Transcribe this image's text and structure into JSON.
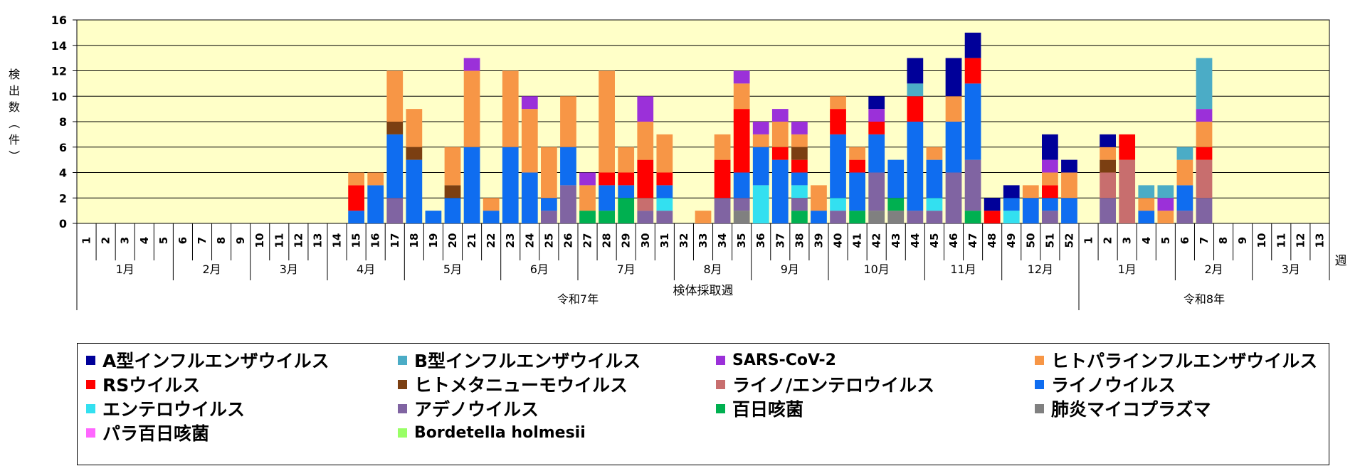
{
  "chart_data": {
    "type": "bar",
    "stacked": true,
    "ylabel": "検出数（件）",
    "xlabel": "検体採取週",
    "week_label": "週",
    "ylim": [
      0,
      16
    ],
    "yticks": [
      0,
      2,
      4,
      6,
      8,
      10,
      12,
      14,
      16
    ],
    "grid": true,
    "plot_background": "#ffffc8",
    "categories": [
      "1",
      "2",
      "3",
      "4",
      "5",
      "6",
      "7",
      "8",
      "9",
      "10",
      "11",
      "12",
      "13",
      "14",
      "15",
      "16",
      "17",
      "18",
      "19",
      "20",
      "21",
      "22",
      "23",
      "24",
      "25",
      "26",
      "27",
      "28",
      "29",
      "30",
      "31",
      "32",
      "33",
      "34",
      "35",
      "36",
      "37",
      "38",
      "39",
      "40",
      "41",
      "42",
      "43",
      "44",
      "45",
      "46",
      "47",
      "48",
      "49",
      "50",
      "51",
      "52",
      "1",
      "2",
      "3",
      "4",
      "5",
      "6",
      "7",
      "8",
      "9",
      "10",
      "11",
      "12",
      "13"
    ],
    "months": [
      {
        "label": "1月",
        "from": 0,
        "to": 5
      },
      {
        "label": "2月",
        "from": 5,
        "to": 9
      },
      {
        "label": "3月",
        "from": 9,
        "to": 13
      },
      {
        "label": "4月",
        "from": 13,
        "to": 17
      },
      {
        "label": "5月",
        "from": 17,
        "to": 22
      },
      {
        "label": "6月",
        "from": 22,
        "to": 26
      },
      {
        "label": "7月",
        "from": 26,
        "to": 31
      },
      {
        "label": "8月",
        "from": 31,
        "to": 35
      },
      {
        "label": "9月",
        "from": 35,
        "to": 39
      },
      {
        "label": "10月",
        "from": 39,
        "to": 44
      },
      {
        "label": "11月",
        "from": 44,
        "to": 48
      },
      {
        "label": "12月",
        "from": 48,
        "to": 52
      },
      {
        "label": "1月",
        "from": 52,
        "to": 57
      },
      {
        "label": "2月",
        "from": 57,
        "to": 61
      },
      {
        "label": "3月",
        "from": 61,
        "to": 65
      }
    ],
    "years": [
      {
        "label": "令和7年",
        "from": 0,
        "to": 52
      },
      {
        "label": "令和8年",
        "from": 52,
        "to": 65
      }
    ],
    "series": [
      {
        "name": "肺炎マイコプラズマ",
        "color": "#808080",
        "values": [
          0,
          0,
          0,
          0,
          0,
          0,
          0,
          0,
          0,
          0,
          0,
          0,
          0,
          0,
          0,
          0,
          0,
          0,
          0,
          0,
          0,
          0,
          0,
          0,
          0,
          0,
          0,
          0,
          0,
          0,
          0,
          0,
          0,
          0,
          1,
          0,
          0,
          0,
          0,
          0,
          0,
          1,
          1,
          0,
          0,
          0,
          0,
          0,
          0,
          0,
          0,
          0,
          0,
          0,
          0,
          0,
          0,
          0,
          0,
          0,
          0,
          0,
          0,
          0,
          0
        ]
      },
      {
        "name": "百日咳菌",
        "color": "#00b050",
        "values": [
          0,
          0,
          0,
          0,
          0,
          0,
          0,
          0,
          0,
          0,
          0,
          0,
          0,
          0,
          0,
          0,
          0,
          0,
          0,
          0,
          0,
          0,
          0,
          0,
          0,
          0,
          1,
          1,
          2,
          0,
          0,
          0,
          0,
          0,
          0,
          0,
          0,
          1,
          0,
          0,
          1,
          0,
          1,
          0,
          0,
          0,
          1,
          0,
          0,
          0,
          0,
          0,
          0,
          0,
          0,
          0,
          0,
          0,
          0,
          0,
          0,
          0,
          0,
          0,
          0
        ]
      },
      {
        "name": "アデノウイルス",
        "color": "#8064a2",
        "values": [
          0,
          0,
          0,
          0,
          0,
          0,
          0,
          0,
          0,
          0,
          0,
          0,
          0,
          0,
          0,
          0,
          2,
          0,
          0,
          0,
          0,
          0,
          0,
          0,
          1,
          3,
          0,
          0,
          0,
          1,
          1,
          0,
          0,
          2,
          1,
          0,
          0,
          1,
          0,
          1,
          0,
          3,
          0,
          1,
          1,
          4,
          4,
          0,
          0,
          0,
          1,
          0,
          0,
          2,
          0,
          0,
          0,
          1,
          2,
          0,
          0,
          0,
          0,
          0,
          0
        ]
      },
      {
        "name": "エンテロウイルス",
        "color": "#33e0f0",
        "values": [
          0,
          0,
          0,
          0,
          0,
          0,
          0,
          0,
          0,
          0,
          0,
          0,
          0,
          0,
          0,
          0,
          0,
          0,
          0,
          0,
          0,
          0,
          0,
          0,
          0,
          0,
          0,
          0,
          0,
          0,
          1,
          0,
          0,
          0,
          0,
          3,
          0,
          1,
          0,
          1,
          0,
          0,
          0,
          0,
          1,
          0,
          0,
          0,
          1,
          0,
          0,
          0,
          0,
          0,
          0,
          0,
          0,
          0,
          0,
          0,
          0,
          0,
          0,
          0,
          0
        ]
      },
      {
        "name": "ライノ/エンテロウイルス",
        "color": "#c86e6e",
        "values": [
          0,
          0,
          0,
          0,
          0,
          0,
          0,
          0,
          0,
          0,
          0,
          0,
          0,
          0,
          0,
          0,
          0,
          0,
          0,
          0,
          0,
          0,
          0,
          0,
          0,
          0,
          0,
          0,
          0,
          1,
          0,
          0,
          0,
          0,
          0,
          0,
          0,
          0,
          0,
          0,
          0,
          0,
          0,
          0,
          0,
          0,
          0,
          0,
          0,
          0,
          0,
          0,
          0,
          2,
          5,
          0,
          0,
          0,
          3,
          0,
          0,
          0,
          0,
          0,
          0
        ]
      },
      {
        "name": "ライノウイルス",
        "color": "#0f6df0",
        "values": [
          0,
          0,
          0,
          0,
          0,
          0,
          0,
          0,
          0,
          0,
          0,
          0,
          0,
          0,
          1,
          3,
          5,
          5,
          1,
          2,
          6,
          1,
          6,
          4,
          1,
          3,
          0,
          2,
          1,
          0,
          1,
          0,
          0,
          0,
          2,
          3,
          5,
          1,
          1,
          5,
          3,
          3,
          3,
          7,
          3,
          4,
          6,
          0,
          1,
          2,
          1,
          2,
          0,
          0,
          0,
          1,
          0,
          2,
          0,
          0,
          0,
          0,
          0,
          0,
          0
        ]
      },
      {
        "name": "RSウイルス",
        "color": "#ff0000",
        "values": [
          0,
          0,
          0,
          0,
          0,
          0,
          0,
          0,
          0,
          0,
          0,
          0,
          0,
          0,
          2,
          0,
          0,
          0,
          0,
          0,
          0,
          0,
          0,
          0,
          0,
          0,
          0,
          1,
          1,
          3,
          1,
          0,
          0,
          3,
          5,
          0,
          1,
          1,
          0,
          2,
          1,
          1,
          0,
          2,
          0,
          0,
          2,
          1,
          0,
          0,
          1,
          0,
          0,
          0,
          2,
          0,
          0,
          0,
          1,
          0,
          0,
          0,
          0,
          0,
          0
        ]
      },
      {
        "name": "ヒトメタニューモウイルス",
        "color": "#7b3f12",
        "values": [
          0,
          0,
          0,
          0,
          0,
          0,
          0,
          0,
          0,
          0,
          0,
          0,
          0,
          0,
          0,
          0,
          1,
          1,
          0,
          1,
          0,
          0,
          0,
          0,
          0,
          0,
          0,
          0,
          0,
          0,
          0,
          0,
          0,
          0,
          0,
          0,
          0,
          1,
          0,
          0,
          0,
          0,
          0,
          0,
          0,
          0,
          0,
          0,
          0,
          0,
          0,
          0,
          0,
          1,
          0,
          0,
          0,
          0,
          0,
          0,
          0,
          0,
          0,
          0,
          0
        ]
      },
      {
        "name": "ヒトパラインフルエンザウイルス",
        "color": "#f79646",
        "values": [
          0,
          0,
          0,
          0,
          0,
          0,
          0,
          0,
          0,
          0,
          0,
          0,
          0,
          0,
          1,
          1,
          4,
          3,
          0,
          3,
          6,
          1,
          6,
          5,
          4,
          4,
          2,
          8,
          2,
          3,
          3,
          0,
          1,
          2,
          2,
          1,
          2,
          1,
          2,
          1,
          1,
          0,
          0,
          0,
          1,
          2,
          0,
          0,
          0,
          1,
          1,
          2,
          0,
          1,
          0,
          1,
          1,
          2,
          2,
          0,
          0,
          0,
          0,
          0,
          0
        ]
      },
      {
        "name": "SARS-CoV-2",
        "color": "#9b30d9",
        "values": [
          0,
          0,
          0,
          0,
          0,
          0,
          0,
          0,
          0,
          0,
          0,
          0,
          0,
          0,
          0,
          0,
          0,
          0,
          0,
          0,
          1,
          0,
          0,
          1,
          0,
          0,
          1,
          0,
          0,
          2,
          0,
          0,
          0,
          0,
          1,
          1,
          1,
          1,
          0,
          0,
          0,
          1,
          0,
          0,
          0,
          0,
          0,
          0,
          0,
          0,
          1,
          0,
          0,
          0,
          0,
          0,
          1,
          0,
          1,
          0,
          0,
          0,
          0,
          0,
          0
        ]
      },
      {
        "name": "B型インフルエンザウイルス",
        "color": "#4bacc6",
        "values": [
          0,
          0,
          0,
          0,
          0,
          0,
          0,
          0,
          0,
          0,
          0,
          0,
          0,
          0,
          0,
          0,
          0,
          0,
          0,
          0,
          0,
          0,
          0,
          0,
          0,
          0,
          0,
          0,
          0,
          0,
          0,
          0,
          0,
          0,
          0,
          0,
          0,
          0,
          0,
          0,
          0,
          0,
          0,
          1,
          0,
          0,
          0,
          0,
          0,
          0,
          0,
          0,
          0,
          0,
          0,
          1,
          1,
          1,
          4,
          0,
          0,
          0,
          0,
          0,
          0
        ]
      },
      {
        "name": "A型インフルエンザウイルス",
        "color": "#000099",
        "values": [
          0,
          0,
          0,
          0,
          0,
          0,
          0,
          0,
          0,
          0,
          0,
          0,
          0,
          0,
          0,
          0,
          0,
          0,
          0,
          0,
          0,
          0,
          0,
          0,
          0,
          0,
          0,
          0,
          0,
          0,
          0,
          0,
          0,
          0,
          0,
          0,
          0,
          0,
          0,
          0,
          0,
          1,
          0,
          2,
          0,
          3,
          2,
          1,
          1,
          0,
          2,
          1,
          0,
          1,
          0,
          0,
          0,
          0,
          0,
          0,
          0,
          0,
          0,
          0,
          0
        ]
      },
      {
        "name": "パラ百日咳菌",
        "color": "#ff66ff",
        "values": [
          0,
          0,
          0,
          0,
          0,
          0,
          0,
          0,
          0,
          0,
          0,
          0,
          0,
          0,
          0,
          0,
          0,
          0,
          0,
          0,
          0,
          0,
          0,
          0,
          0,
          0,
          0,
          0,
          0,
          0,
          0,
          0,
          0,
          0,
          0,
          0,
          0,
          0,
          0,
          0,
          0,
          0,
          0,
          0,
          0,
          0,
          0,
          0,
          0,
          0,
          0,
          0,
          0,
          0,
          0,
          0,
          0,
          0,
          0,
          0,
          0,
          0,
          0,
          0,
          0
        ]
      },
      {
        "name": "Bordetella holmesii",
        "color": "#99ff66",
        "values": [
          0,
          0,
          0,
          0,
          0,
          0,
          0,
          0,
          0,
          0,
          0,
          0,
          0,
          0,
          0,
          0,
          0,
          0,
          0,
          0,
          0,
          0,
          0,
          0,
          0,
          0,
          0,
          0,
          0,
          0,
          0,
          0,
          0,
          0,
          0,
          0,
          0,
          0,
          0,
          0,
          0,
          0,
          0,
          0,
          0,
          0,
          0,
          0,
          0,
          0,
          0,
          0,
          0,
          0,
          0,
          0,
          0,
          0,
          0,
          0,
          0,
          0,
          0,
          0,
          0
        ]
      }
    ],
    "legend": [
      {
        "name": "A型インフルエンザウイルス",
        "color": "#000099"
      },
      {
        "name": "B型インフルエンザウイルス",
        "color": "#4bacc6"
      },
      {
        "name": "SARS-CoV-2",
        "color": "#9b30d9"
      },
      {
        "name": "ヒトパラインフルエンザウイルス",
        "color": "#f79646"
      },
      {
        "name": "RSウイルス",
        "color": "#ff0000"
      },
      {
        "name": "ヒトメタニューモウイルス",
        "color": "#7b3f12"
      },
      {
        "name": "ライノ/エンテロウイルス",
        "color": "#c86e6e"
      },
      {
        "name": "ライノウイルス",
        "color": "#0f6df0"
      },
      {
        "name": "エンテロウイルス",
        "color": "#33e0f0"
      },
      {
        "name": "アデノウイルス",
        "color": "#8064a2"
      },
      {
        "name": "百日咳菌",
        "color": "#00b050"
      },
      {
        "name": "肺炎マイコプラズマ",
        "color": "#808080"
      },
      {
        "name": "パラ百日咳菌",
        "color": "#ff66ff"
      },
      {
        "name": "Bordetella holmesii",
        "color": "#99ff66"
      }
    ]
  }
}
